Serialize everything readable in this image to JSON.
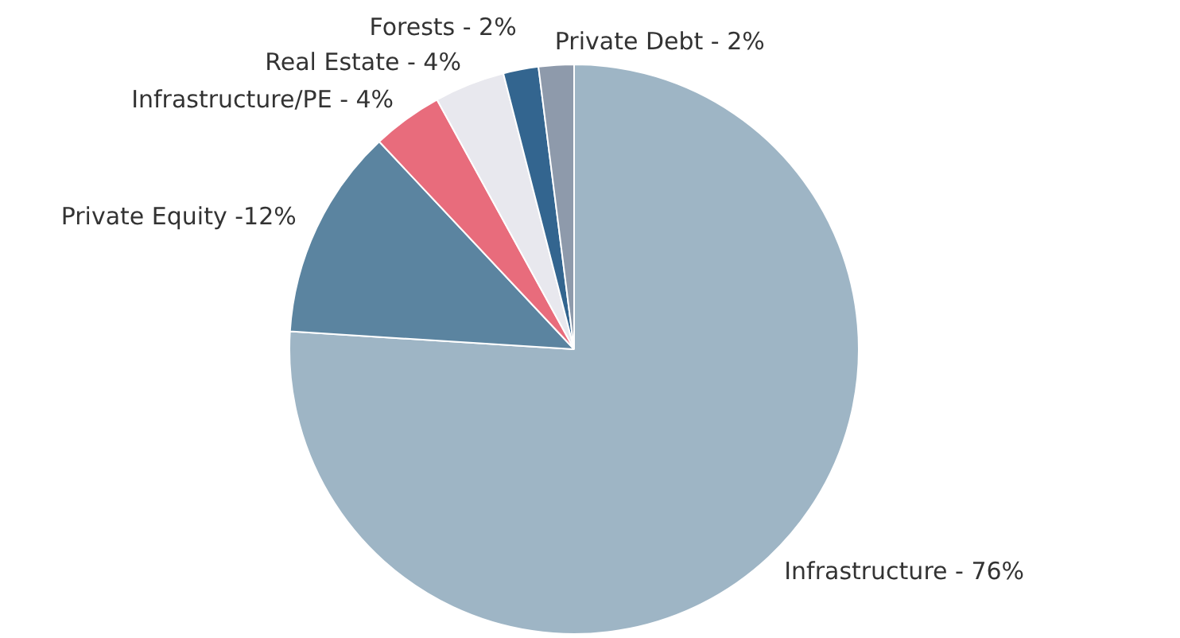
{
  "chart_data": {
    "type": "pie",
    "categories": [
      "Infrastructure - 76%",
      "Private Equity -12%",
      "Infrastructure/PE - 4%",
      "Real Estate - 4%",
      "Forests - 2%",
      "Private Debt - 2%"
    ],
    "values": [
      76,
      12,
      4,
      4,
      2,
      2
    ],
    "colors": [
      "#9eb5c5",
      "#5b84a0",
      "#e86c7c",
      "#e8e8ee",
      "#33658f",
      "#8e9aab"
    ],
    "legend": false
  }
}
